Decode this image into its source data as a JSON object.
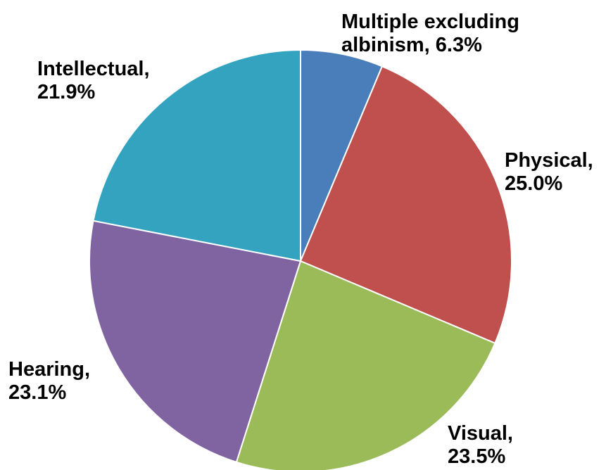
{
  "chart_data": {
    "type": "pie",
    "title": "",
    "start_angle_deg": 0,
    "direction": "clockwise",
    "grid": false,
    "legend": "none",
    "slices": [
      {
        "label_lines": [
          "Multiple excluding",
          "albinism, 6.3%"
        ],
        "category": "Multiple excluding albinism",
        "value": 6.3,
        "color": "#4a7ebb"
      },
      {
        "label_lines": [
          "Physical,",
          "25.0%"
        ],
        "category": "Physical",
        "value": 25.0,
        "color": "#c0504d"
      },
      {
        "label_lines": [
          "Visual,",
          "23.5%"
        ],
        "category": "Visual",
        "value": 23.5,
        "color": "#9bbb59"
      },
      {
        "label_lines": [
          "Hearing,",
          "23.1%"
        ],
        "category": "Hearing",
        "value": 23.1,
        "color": "#8064a2"
      },
      {
        "label_lines": [
          "Intellectual,",
          "21.9%"
        ],
        "category": "Intellectual",
        "value": 21.9,
        "color": "#34a3c0"
      }
    ]
  }
}
